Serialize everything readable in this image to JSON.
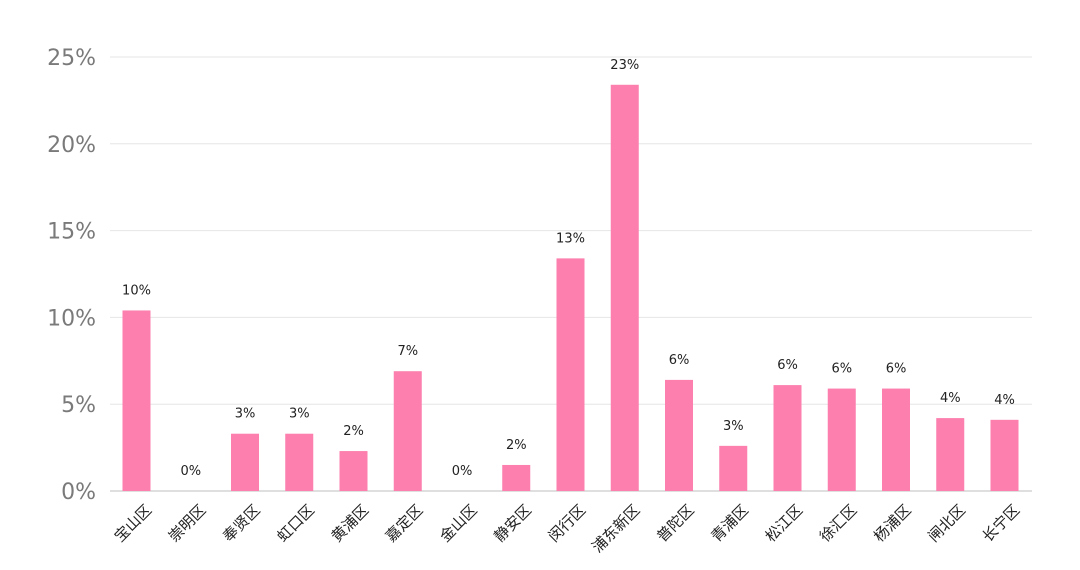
{
  "chart_data": {
    "type": "bar",
    "categories": [
      "宝山区",
      "崇明区",
      "奉贤区",
      "虹口区",
      "黄浦区",
      "嘉定区",
      "金山区",
      "静安区",
      "闵行区",
      "浦东新区",
      "普陀区",
      "青浦区",
      "松江区",
      "徐汇区",
      "杨浦区",
      "闸北区",
      "长宁区"
    ],
    "values": [
      10.4,
      0,
      3.3,
      3.3,
      2.3,
      6.9,
      0,
      1.5,
      13.4,
      23.4,
      6.4,
      2.6,
      6.1,
      5.9,
      5.9,
      4.2,
      4.1
    ],
    "data_labels": [
      "10%",
      "0%",
      "3%",
      "3%",
      "2%",
      "7%",
      "0%",
      "2%",
      "13%",
      "23%",
      "6%",
      "3%",
      "6%",
      "6%",
      "6%",
      "4%",
      "4%"
    ],
    "y_ticks": [
      "0%",
      "5%",
      "10%",
      "15%",
      "20%",
      "25%"
    ],
    "ylim": [
      0,
      25
    ],
    "grid": true,
    "legend": "none",
    "title": "",
    "xlabel": "",
    "ylabel": "",
    "colors": {
      "bar": "#fc7fad",
      "grid": "#e6e6e6",
      "axis": "#bfbfbf"
    }
  }
}
